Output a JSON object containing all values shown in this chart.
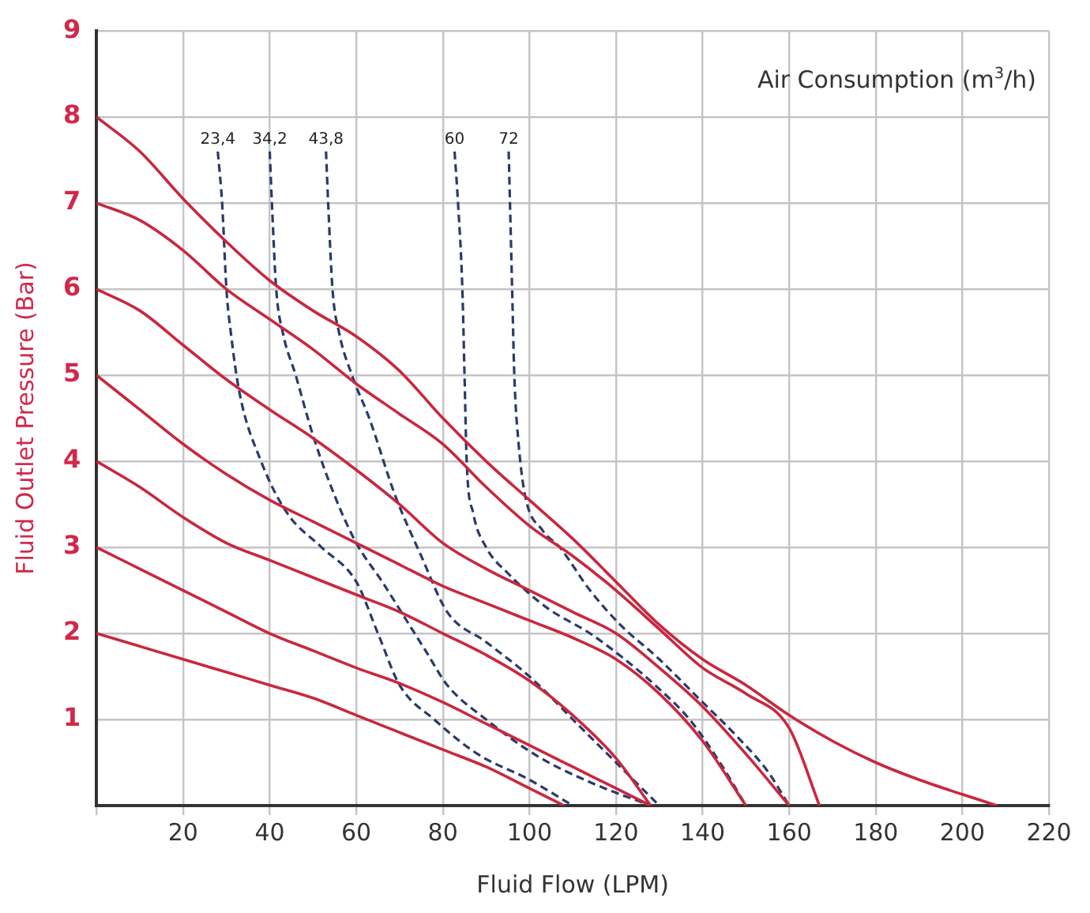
{
  "chart_data": {
    "type": "line",
    "xlabel": "Fluid Flow (LPM)",
    "ylabel": "Fluid Outlet Pressure (Bar)",
    "annotations": [
      "Air Consumption (m$^{3}$/h)"
    ],
    "xlim": [
      0,
      220
    ],
    "xticks": [
      {
        "value": 0,
        "label": null
      },
      20,
      40,
      60,
      80,
      100,
      120,
      140,
      160,
      180,
      200,
      220
    ],
    "ylim": [
      0,
      9
    ],
    "yticks": [
      {
        "value": 0,
        "label": null
      },
      1,
      2,
      3,
      4,
      5,
      6,
      7,
      8,
      9
    ],
    "grid": true,
    "legend": false,
    "marker": "none",
    "series": [
      {
        "color": "#c8283f",
        "line_style": "solid",
        "x": [
          0,
          10,
          20,
          30,
          40,
          50,
          60,
          70,
          80,
          90,
          100,
          110,
          120,
          130,
          140,
          150,
          160,
          170,
          180,
          190,
          200,
          208
        ],
        "values": [
          8,
          7.6,
          7.05,
          6.55,
          6.1,
          5.75,
          5.45,
          5.05,
          4.5,
          4.0,
          3.55,
          3.1,
          2.6,
          2.1,
          1.7,
          1.4,
          1.05,
          0.75,
          0.5,
          0.3,
          0.13,
          0
        ]
      },
      {
        "color": "#c8283f",
        "line_style": "solid",
        "x": [
          0,
          10,
          20,
          30,
          40,
          50,
          60,
          70,
          80,
          90,
          100,
          110,
          120,
          130,
          140,
          150,
          160,
          167
        ],
        "values": [
          7,
          6.8,
          6.45,
          6.0,
          5.65,
          5.3,
          4.9,
          4.55,
          4.2,
          3.7,
          3.25,
          2.9,
          2.5,
          2.05,
          1.6,
          1.3,
          0.9,
          0
        ]
      },
      {
        "color": "#c8283f",
        "line_style": "solid",
        "x": [
          0,
          10,
          20,
          30,
          40,
          50,
          60,
          70,
          80,
          90,
          100,
          110,
          120,
          130,
          140,
          150,
          160
        ],
        "values": [
          6,
          5.75,
          5.35,
          4.95,
          4.6,
          4.27,
          3.9,
          3.5,
          3.05,
          2.75,
          2.5,
          2.25,
          2.0,
          1.6,
          1.15,
          0.6,
          0
        ]
      },
      {
        "color": "#c8283f",
        "line_style": "solid",
        "x": [
          0,
          10,
          20,
          30,
          40,
          50,
          60,
          70,
          80,
          90,
          100,
          110,
          120,
          130,
          140,
          150
        ],
        "values": [
          5,
          4.6,
          4.2,
          3.85,
          3.55,
          3.3,
          3.05,
          2.8,
          2.55,
          2.35,
          2.15,
          1.95,
          1.7,
          1.3,
          0.75,
          0
        ]
      },
      {
        "color": "#c8283f",
        "line_style": "solid",
        "x": [
          0,
          10,
          20,
          30,
          40,
          50,
          60,
          70,
          80,
          90,
          100,
          110,
          120,
          128
        ],
        "values": [
          4,
          3.7,
          3.35,
          3.05,
          2.85,
          2.65,
          2.45,
          2.25,
          2.0,
          1.75,
          1.45,
          1.05,
          0.55,
          0
        ]
      },
      {
        "color": "#c8283f",
        "line_style": "solid",
        "x": [
          0,
          10,
          20,
          30,
          40,
          50,
          60,
          70,
          80,
          90,
          100,
          110,
          120,
          128
        ],
        "values": [
          3,
          2.75,
          2.5,
          2.25,
          2.0,
          1.8,
          1.6,
          1.42,
          1.2,
          0.95,
          0.7,
          0.45,
          0.2,
          0
        ]
      },
      {
        "color": "#c8283f",
        "line_style": "solid",
        "x": [
          0,
          10,
          20,
          30,
          40,
          50,
          60,
          70,
          80,
          90,
          100,
          108
        ],
        "values": [
          2,
          1.85,
          1.7,
          1.55,
          1.4,
          1.25,
          1.05,
          0.85,
          0.65,
          0.45,
          0.2,
          0
        ]
      },
      {
        "name": "23,4",
        "color": "#2b3a6b",
        "line_style": "dashed",
        "x": [
          28,
          29,
          30,
          31,
          33,
          38,
          44,
          52,
          60,
          65,
          70,
          78,
          88,
          100,
          110
        ],
        "values": [
          7.6,
          7,
          6,
          5.5,
          4.8,
          4,
          3.4,
          3,
          2.6,
          2,
          1.4,
          1,
          0.6,
          0.3,
          0
        ]
      },
      {
        "name": "34,2",
        "color": "#2b3a6b",
        "line_style": "dashed",
        "x": [
          40,
          40.5,
          41.5,
          43,
          46,
          50,
          55,
          60,
          66,
          71,
          76,
          81,
          90,
          102,
          115,
          128
        ],
        "values": [
          7.6,
          7,
          6,
          5.5,
          5,
          4.3,
          3.6,
          3.05,
          2.6,
          2.2,
          1.8,
          1.4,
          1,
          0.57,
          0.25,
          0
        ]
      },
      {
        "name": "43,8",
        "color": "#2b3a6b",
        "line_style": "dashed",
        "x": [
          53,
          53.5,
          54.5,
          56,
          59,
          63,
          69,
          75,
          81,
          90,
          100,
          112,
          122,
          130
        ],
        "values": [
          7.6,
          7,
          6,
          5.5,
          5,
          4.5,
          3.6,
          2.9,
          2.25,
          1.9,
          1.5,
          0.9,
          0.4,
          0
        ]
      },
      {
        "name": "60",
        "color": "#2b3a6b",
        "line_style": "dashed",
        "x": [
          82.7,
          83.5,
          84.5,
          85,
          85.5,
          87,
          90,
          95,
          104,
          114,
          122,
          129,
          137,
          144,
          150
        ],
        "values": [
          7.6,
          7,
          6,
          5,
          4,
          3.4,
          3,
          2.7,
          2.3,
          2,
          1.7,
          1.4,
          1,
          0.5,
          0
        ]
      },
      {
        "name": "72",
        "color": "#2b3a6b",
        "line_style": "dashed",
        "x": [
          95.2,
          95.5,
          96,
          96.5,
          97.5,
          99,
          103,
          107,
          114,
          121,
          130,
          139,
          148,
          155,
          160
        ],
        "values": [
          7.6,
          7,
          6,
          5,
          4.2,
          3.6,
          3.2,
          3,
          2.5,
          2.1,
          1.7,
          1.25,
          0.8,
          0.4,
          0
        ]
      }
    ]
  }
}
